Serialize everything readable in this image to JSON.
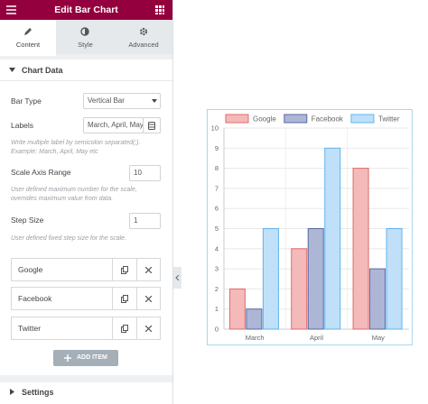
{
  "header": {
    "title": "Edit Bar Chart"
  },
  "tabs": [
    "Content",
    "Style",
    "Advanced"
  ],
  "section": {
    "title": "Chart Data"
  },
  "fields": [
    {
      "label": "Bar Type",
      "value": "Vertical Bar"
    },
    {
      "label": "Labels",
      "value": "March, April, May",
      "help": "Write multiple label by semicolon separated(;). Example: March, April, May etc"
    },
    {
      "label": "Scale Axis Range",
      "value": "10",
      "help": "User defined maximum number for the scale, overrides maximum value from data."
    },
    {
      "label": "Step Size",
      "value": "1",
      "help": "User defined fixed step size for the scale."
    }
  ],
  "items": [
    "Google",
    "Facebook",
    "Twitter"
  ],
  "add_button": "ADD ITEM",
  "settings": "Settings",
  "chart_data": {
    "type": "bar",
    "categories": [
      "March",
      "April",
      "May"
    ],
    "series": [
      {
        "name": "Google",
        "color": "#f4b9b9",
        "border_color": "#e06b6b",
        "values": [
          2,
          4,
          8
        ]
      },
      {
        "name": "Facebook",
        "color": "#aeb6d6",
        "border_color": "#5a69a3",
        "values": [
          1,
          5,
          3
        ]
      },
      {
        "name": "Twitter",
        "color": "#bfe0f8",
        "border_color": "#5fb4ee",
        "values": [
          5,
          9,
          5
        ]
      }
    ],
    "ylim": [
      0,
      10
    ],
    "yticks": [
      0,
      1,
      2,
      3,
      4,
      5,
      6,
      7,
      8,
      9,
      10
    ],
    "grid": true
  }
}
